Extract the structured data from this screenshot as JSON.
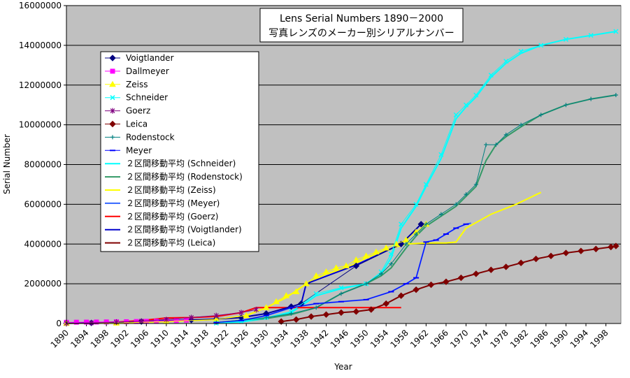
{
  "chart_data": {
    "type": "line",
    "title": "Lens Serial Numbers 1890－2000",
    "subtitle": "写真レンズのメーカー別シリアルナンバー",
    "xlabel": "Year",
    "ylabel": "Serial Number",
    "xlim": [
      1890,
      2001
    ],
    "ylim": [
      0,
      16000000
    ],
    "grid": true,
    "legend_position": "upper-left",
    "x_ticks": [
      1890,
      1894,
      1898,
      1902,
      1906,
      1910,
      1914,
      1918,
      1922,
      1926,
      1930,
      1934,
      1938,
      1942,
      1946,
      1950,
      1954,
      1958,
      1962,
      1966,
      1970,
      1974,
      1978,
      1982,
      1986,
      1990,
      1994,
      1998
    ],
    "y_ticks": [
      0,
      2000000,
      4000000,
      6000000,
      8000000,
      10000000,
      12000000,
      14000000,
      16000000
    ],
    "y_tick_labels": [
      "0",
      "2000000",
      "4000000",
      "6000000",
      "8000000",
      "10000000",
      "12000000",
      "14000000",
      "16000000"
    ],
    "colors": {
      "plot_bg": "#c0c0c0",
      "grid": "#000000",
      "Voigtlander": "#000080",
      "Dallmeyer": "#ff00ff",
      "Zeiss": "#ffff00",
      "Schneider": "#00ffff",
      "Goerz": "#800080",
      "Leica": "#800000",
      "Rodenstock": "#008080",
      "Meyer": "#0000ff",
      "MA Schneider": "#00ffff",
      "MA Rodenstock": "#339966",
      "MA Zeiss": "#ffff00",
      "MA Meyer": "#3366ff",
      "MA Goerz": "#ff0000",
      "MA Voigtlander": "#0000cc",
      "MA Leica": "#800000"
    },
    "series": [
      {
        "name": "Voigtlander",
        "marker": "diamond",
        "color": "#000080",
        "x": [
          1890,
          1895,
          1900,
          1905,
          1910,
          1915,
          1920,
          1925,
          1930,
          1935,
          1937,
          1948,
          1957,
          1961
        ],
        "y": [
          10000,
          30000,
          60000,
          100000,
          140000,
          180000,
          220000,
          300000,
          500000,
          850000,
          1000000,
          2900000,
          4000000,
          5000000
        ]
      },
      {
        "name": "Dallmeyer",
        "marker": "square",
        "color": "#ff00ff",
        "x": [
          1890,
          1892,
          1894,
          1896,
          1898,
          1900,
          1902,
          1904,
          1906,
          1908,
          1910,
          1912,
          1914
        ],
        "y": [
          60000,
          65000,
          70000,
          75000,
          80000,
          85000,
          90000,
          100000,
          110000,
          120000,
          130000,
          150000,
          170000
        ]
      },
      {
        "name": "Zeiss",
        "marker": "triangle",
        "color": "#ffff00",
        "x": [
          1890,
          1900,
          1910,
          1920,
          1926,
          1930,
          1932,
          1934,
          1936,
          1938,
          1940,
          1942,
          1944,
          1946,
          1948,
          1950,
          1952,
          1954,
          1956,
          1958,
          1960,
          1962
        ],
        "y": [
          10000,
          20000,
          100000,
          200000,
          400000,
          800000,
          1100000,
          1400000,
          1600000,
          2000000,
          2400000,
          2600000,
          2800000,
          2900000,
          3200000,
          3400000,
          3600000,
          3800000,
          4000000,
          4200000,
          4600000,
          5000000
        ]
      },
      {
        "name": "Schneider",
        "marker": "x",
        "color": "#00ffff",
        "x": [
          1920,
          1925,
          1930,
          1935,
          1940,
          1945,
          1950,
          1953,
          1955,
          1957,
          1960,
          1962,
          1965,
          1968,
          1970,
          1972,
          1975,
          1978,
          1981,
          1985,
          1990,
          1995,
          2000
        ],
        "y": [
          20000,
          100000,
          300000,
          600000,
          1500000,
          1800000,
          2000000,
          2600000,
          3500000,
          5000000,
          6000000,
          7000000,
          8500000,
          10500000,
          11000000,
          11500000,
          12500000,
          13200000,
          13700000,
          14000000,
          14300000,
          14500000,
          14700000
        ]
      },
      {
        "name": "Goerz",
        "marker": "star",
        "color": "#800080",
        "x": [
          1890,
          1895,
          1900,
          1905,
          1910,
          1915,
          1920,
          1925,
          1928
        ],
        "y": [
          10000,
          30000,
          70000,
          120000,
          200000,
          300000,
          400000,
          550000,
          700000
        ]
      },
      {
        "name": "Leica",
        "marker": "diamond",
        "color": "#800000",
        "x": [
          1933,
          1936,
          1939,
          1942,
          1945,
          1948,
          1951,
          1954,
          1957,
          1960,
          1963,
          1966,
          1969,
          1972,
          1975,
          1978,
          1981,
          1984,
          1987,
          1990,
          1993,
          1996,
          1999,
          2000
        ],
        "y": [
          100000,
          200000,
          350000,
          450000,
          550000,
          600000,
          700000,
          1000000,
          1400000,
          1700000,
          1950000,
          2100000,
          2300000,
          2500000,
          2700000,
          2850000,
          3050000,
          3250000,
          3400000,
          3550000,
          3650000,
          3750000,
          3850000,
          3900000
        ]
      },
      {
        "name": "Rodenstock",
        "marker": "plus",
        "color": "#008080",
        "x": [
          1920,
          1930,
          1935,
          1940,
          1945,
          1950,
          1953,
          1955,
          1958,
          1960,
          1962,
          1965,
          1968,
          1970,
          1972,
          1974,
          1976,
          1978,
          1981,
          1985,
          1990,
          1995,
          2000
        ],
        "y": [
          50000,
          300000,
          500000,
          800000,
          1500000,
          2000000,
          2500000,
          3000000,
          4000000,
          4500000,
          5000000,
          5500000,
          6000000,
          6500000,
          7000000,
          9000000,
          9000000,
          9500000,
          10000000,
          10500000,
          11000000,
          11300000,
          11500000
        ]
      },
      {
        "name": "Meyer",
        "marker": "dash",
        "color": "#0000ff",
        "x": [
          1920,
          1925,
          1930,
          1935,
          1940,
          1945,
          1950,
          1955,
          1958,
          1960,
          1962,
          1964,
          1966,
          1968,
          1970
        ],
        "y": [
          50000,
          150000,
          400000,
          800000,
          1000000,
          1100000,
          1200000,
          1600000,
          2000000,
          2300000,
          4100000,
          4200000,
          4500000,
          4800000,
          5000000
        ]
      },
      {
        "name": "２区間移動平均 (Schneider)",
        "marker": "none",
        "color": "#00ffff",
        "x": [
          1920,
          1925,
          1930,
          1935,
          1940,
          1945,
          1950,
          1953,
          1955,
          1957,
          1960,
          1962,
          1965,
          1968,
          1970,
          1972,
          1975,
          1978,
          1981,
          1985,
          1990,
          1995,
          2000
        ],
        "y": [
          20000,
          80000,
          250000,
          550000,
          1400000,
          1750000,
          2000000,
          2500000,
          3300000,
          4800000,
          5900000,
          6900000,
          8300000,
          10300000,
          10900000,
          11400000,
          12400000,
          13100000,
          13600000,
          14000000,
          14300000,
          14500000,
          14700000
        ]
      },
      {
        "name": "２区間移動平均 (Rodenstock)",
        "marker": "none",
        "color": "#339966",
        "x": [
          1920,
          1930,
          1935,
          1940,
          1945,
          1950,
          1953,
          1955,
          1958,
          1960,
          1962,
          1965,
          1968,
          1970,
          1972,
          1974,
          1976,
          1978,
          1981,
          1985,
          1990,
          1995,
          2000
        ],
        "y": [
          50000,
          250000,
          450000,
          800000,
          1500000,
          2000000,
          2400000,
          2800000,
          3800000,
          4400000,
          4900000,
          5400000,
          5900000,
          6400000,
          6900000,
          8200000,
          9000000,
          9400000,
          9900000,
          10500000,
          11000000,
          11300000,
          11500000
        ]
      },
      {
        "name": "２区間移動平均 (Zeiss)",
        "marker": "none",
        "color": "#ffff00",
        "x": [
          1890,
          1900,
          1910,
          1920,
          1926,
          1930,
          1934,
          1938,
          1942,
          1946,
          1950,
          1954,
          1958,
          1962,
          1966,
          1968,
          1970,
          1975,
          1980,
          1985
        ],
        "y": [
          10000,
          20000,
          100000,
          200000,
          400000,
          800000,
          1300000,
          2000000,
          2500000,
          2800000,
          3300000,
          3700000,
          4000000,
          4050000,
          4050000,
          4100000,
          4800000,
          5500000,
          6000000,
          6600000
        ]
      },
      {
        "name": "２区間移動平均 (Meyer)",
        "marker": "none",
        "color": "#3366ff",
        "x": [
          1920,
          1925,
          1930,
          1935,
          1940,
          1945,
          1950,
          1955,
          1958,
          1960,
          1962,
          1964,
          1966,
          1968,
          1970,
          1971
        ],
        "y": [
          50000,
          150000,
          400000,
          800000,
          1000000,
          1100000,
          1200000,
          1600000,
          2000000,
          2300000,
          4100000,
          4200000,
          4500000,
          4800000,
          5000000,
          5050000
        ]
      },
      {
        "name": "２区間移動平均 (Goerz)",
        "marker": "none",
        "color": "#ff0000",
        "x": [
          1890,
          1895,
          1900,
          1905,
          1910,
          1915,
          1920,
          1925,
          1928,
          1935,
          1940,
          1945,
          1950,
          1955,
          1957
        ],
        "y": [
          10000,
          30000,
          70000,
          150000,
          280000,
          300000,
          350000,
          550000,
          800000,
          800000,
          800000,
          800000,
          800000,
          800000,
          800000
        ]
      },
      {
        "name": "２区間移動平均 (Voigtlander)",
        "marker": "none",
        "color": "#0000cc",
        "x": [
          1890,
          1895,
          1900,
          1905,
          1910,
          1915,
          1920,
          1925,
          1930,
          1935,
          1937,
          1938,
          1948,
          1957,
          1961,
          1962
        ],
        "y": [
          10000,
          30000,
          60000,
          100000,
          140000,
          180000,
          220000,
          300000,
          500000,
          850000,
          1000000,
          2000000,
          2950000,
          4000000,
          5000000,
          5000000
        ]
      },
      {
        "name": "２区間移動平均 (Leica)",
        "marker": "none",
        "color": "#800000",
        "x": [
          1933,
          1936,
          1939,
          1942,
          1945,
          1948,
          1951,
          1954,
          1957,
          1960,
          1963,
          1966,
          1969,
          1972,
          1975,
          1978,
          1981,
          1984,
          1987,
          1990,
          1993,
          1996,
          1999,
          2000
        ],
        "y": [
          100000,
          200000,
          350000,
          450000,
          550000,
          600000,
          700000,
          1000000,
          1400000,
          1700000,
          1950000,
          2100000,
          2300000,
          2500000,
          2700000,
          2850000,
          3050000,
          3250000,
          3400000,
          3550000,
          3650000,
          3750000,
          3850000,
          3900000
        ]
      }
    ]
  }
}
